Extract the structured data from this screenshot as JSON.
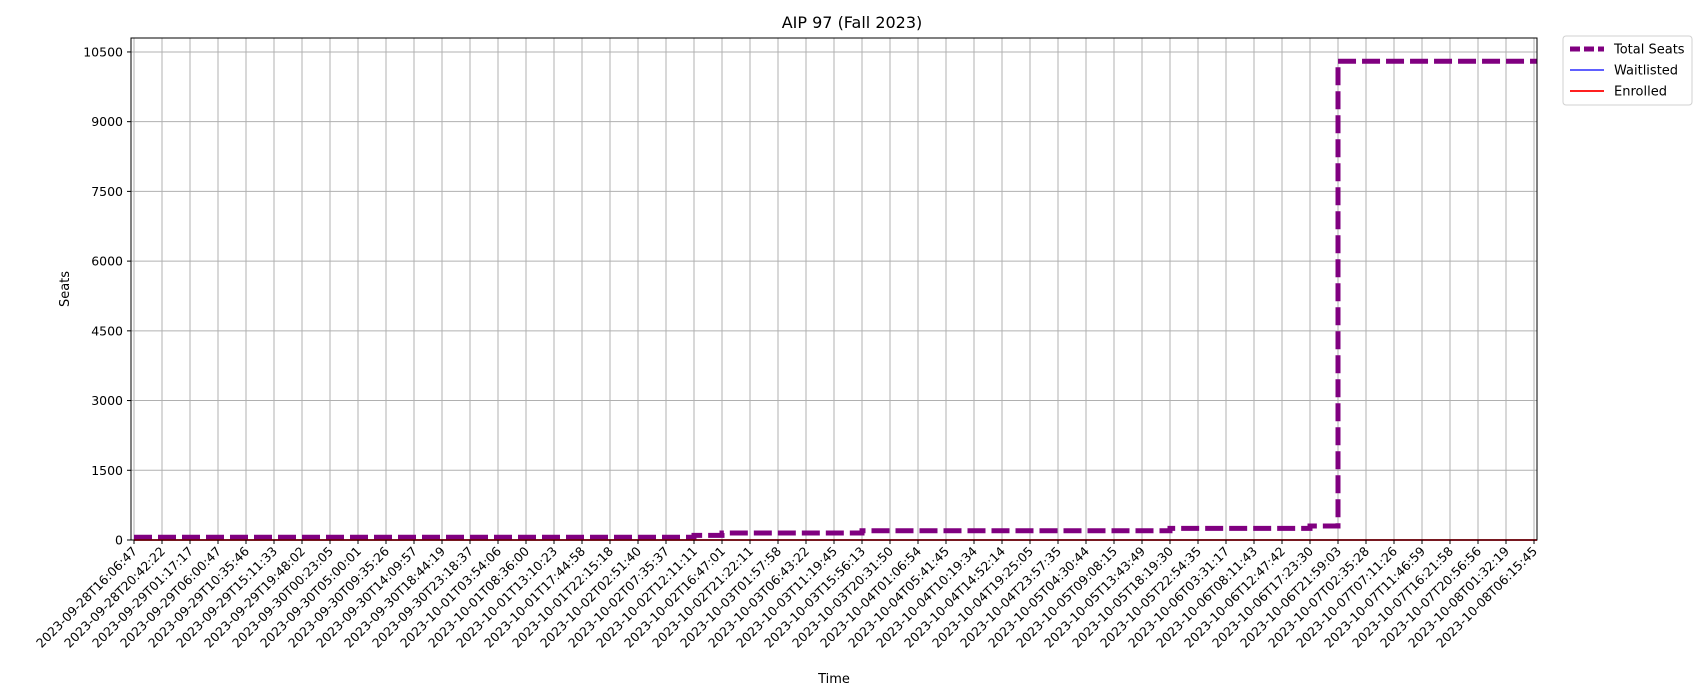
{
  "chart_data": {
    "type": "line",
    "title": "AIP 97 (Fall 2023)",
    "xlabel": "Time",
    "ylabel": "Seats",
    "ylim": [
      0,
      10800
    ],
    "yticks": [
      0,
      1500,
      3000,
      4500,
      6000,
      7500,
      9000,
      10500
    ],
    "grid": true,
    "legend_position": "outside-top-right",
    "x": [
      "2023-09-28T16:06:47",
      "2023-09-28T20:42:22",
      "2023-09-29T01:17:17",
      "2023-09-29T06:00:47",
      "2023-09-29T10:35:46",
      "2023-09-29T15:11:33",
      "2023-09-29T19:48:02",
      "2023-09-30T00:23:05",
      "2023-09-30T05:00:01",
      "2023-09-30T09:35:26",
      "2023-09-30T14:09:57",
      "2023-09-30T18:44:19",
      "2023-09-30T23:18:37",
      "2023-10-01T03:54:06",
      "2023-10-01T08:36:00",
      "2023-10-01T13:10:23",
      "2023-10-01T17:44:58",
      "2023-10-01T22:15:18",
      "2023-10-02T02:51:40",
      "2023-10-02T07:35:37",
      "2023-10-02T12:11:11",
      "2023-10-02T16:47:01",
      "2023-10-02T21:22:11",
      "2023-10-03T01:57:58",
      "2023-10-03T06:43:22",
      "2023-10-03T11:19:45",
      "2023-10-03T15:56:13",
      "2023-10-03T20:31:50",
      "2023-10-04T01:06:54",
      "2023-10-04T05:41:45",
      "2023-10-04T10:19:34",
      "2023-10-04T14:52:14",
      "2023-10-04T19:25:05",
      "2023-10-04T23:57:35",
      "2023-10-05T04:30:44",
      "2023-10-05T09:08:15",
      "2023-10-05T13:43:49",
      "2023-10-05T18:19:30",
      "2023-10-05T22:54:35",
      "2023-10-06T03:31:17",
      "2023-10-06T08:11:43",
      "2023-10-06T12:47:42",
      "2023-10-06T17:23:30",
      "2023-10-06T21:59:03",
      "2023-10-07T02:35:28",
      "2023-10-07T07:11:26",
      "2023-10-07T11:46:59",
      "2023-10-07T16:21:58",
      "2023-10-07T20:56:56",
      "2023-10-08T01:32:19",
      "2023-10-08T06:15:45"
    ],
    "series": [
      {
        "name": "Total Seats",
        "color": "#800080",
        "style": "dashed",
        "values": [
          60,
          60,
          60,
          60,
          60,
          60,
          60,
          60,
          60,
          60,
          60,
          60,
          60,
          60,
          60,
          60,
          60,
          60,
          60,
          60,
          100,
          150,
          150,
          150,
          150,
          150,
          200,
          200,
          200,
          200,
          200,
          200,
          200,
          200,
          200,
          200,
          200,
          250,
          250,
          250,
          250,
          250,
          300,
          10300,
          10300,
          10300,
          10300,
          10300,
          10300,
          10300,
          10300
        ]
      },
      {
        "name": "Waitlisted",
        "color": "#0000ff",
        "style": "solid",
        "values": [
          0,
          0,
          0,
          0,
          0,
          0,
          0,
          0,
          0,
          0,
          0,
          0,
          0,
          0,
          0,
          0,
          0,
          0,
          0,
          0,
          0,
          0,
          0,
          0,
          0,
          0,
          0,
          0,
          0,
          0,
          0,
          0,
          0,
          0,
          0,
          0,
          0,
          0,
          0,
          0,
          0,
          0,
          0,
          0,
          0,
          0,
          0,
          0,
          0,
          0,
          0
        ]
      },
      {
        "name": "Enrolled",
        "color": "#ff0000",
        "style": "solid",
        "values": [
          0,
          0,
          0,
          0,
          0,
          0,
          0,
          0,
          0,
          0,
          0,
          0,
          0,
          0,
          0,
          0,
          0,
          0,
          0,
          0,
          0,
          0,
          0,
          0,
          0,
          0,
          0,
          0,
          0,
          0,
          0,
          0,
          0,
          0,
          0,
          0,
          0,
          0,
          0,
          0,
          0,
          0,
          0,
          0,
          0,
          0,
          0,
          0,
          0,
          0,
          0
        ]
      }
    ]
  }
}
